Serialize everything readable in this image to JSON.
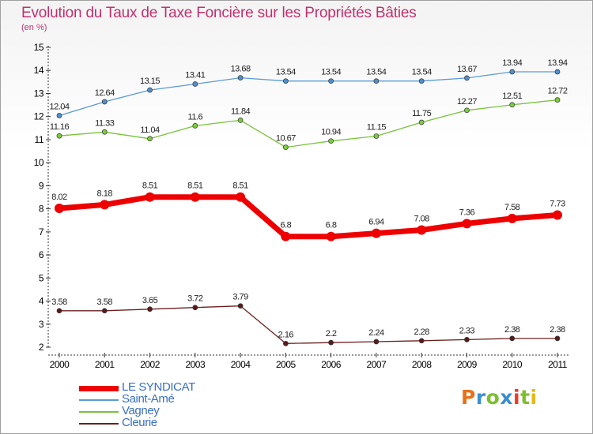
{
  "title": "Evolution du Taux de Taxe Foncière sur les Propriétés Bâties",
  "subtitle": "(en %)",
  "logo_text": "Proxiti",
  "logo_colors": [
    "#e8711c",
    "#3a8fd1",
    "#7cbf2f",
    "#3a8fd1",
    "#e83c2c",
    "#7cbf2f",
    "#e8b81c"
  ],
  "chart_data": {
    "type": "line",
    "title": "Evolution du Taux de Taxe Foncière sur les Propriétés Bâties",
    "ylabel": "(en %)",
    "xlabel": "",
    "ylim": [
      2,
      15
    ],
    "yticks": [
      "2",
      "3",
      "4",
      "5",
      "6",
      "7",
      "8",
      "9",
      "10",
      "11",
      "12",
      "13",
      "14",
      "15"
    ],
    "x": [
      "2000",
      "2001",
      "2002",
      "2003",
      "2004",
      "2005",
      "2006",
      "2007",
      "2008",
      "2009",
      "2010",
      "2011"
    ],
    "grid": false,
    "series": [
      {
        "name": "Saint-Amé",
        "color": "#5a9bd4",
        "marker": "#4f8fcc",
        "bold": false,
        "values": [
          12.04,
          12.64,
          13.15,
          13.41,
          13.68,
          13.54,
          13.54,
          13.54,
          13.54,
          13.67,
          13.94,
          13.94
        ],
        "labels": [
          "12.04",
          "12.64",
          "13.15",
          "13.41",
          "13.68",
          "13.54",
          "13.54",
          "13.54",
          "13.54",
          "13.67",
          "13.94",
          "13.94"
        ]
      },
      {
        "name": "Vagney",
        "color": "#79c33a",
        "marker": "#7ccc3c",
        "bold": false,
        "values": [
          11.16,
          11.33,
          11.04,
          11.6,
          11.84,
          10.67,
          10.94,
          11.15,
          11.75,
          12.27,
          12.51,
          12.72
        ],
        "labels": [
          "11.16",
          "11.33",
          "11.04",
          "11.6",
          "11.84",
          "10.67",
          "10.94",
          "11.15",
          "11.75",
          "12.27",
          "12.51",
          "12.72"
        ]
      },
      {
        "name": "LE SYNDICAT",
        "color": "#ee0000",
        "marker": "#ee0000",
        "bold": true,
        "values": [
          8.02,
          8.18,
          8.51,
          8.51,
          8.51,
          6.8,
          6.8,
          6.94,
          7.08,
          7.36,
          7.58,
          7.73
        ],
        "labels": [
          "8.02",
          "8.18",
          "8.51",
          "8.51",
          "8.51",
          "6.8",
          "6.8",
          "6.94",
          "7.08",
          "7.36",
          "7.58",
          "7.73"
        ]
      },
      {
        "name": "Cleurie",
        "color": "#6b2020",
        "marker": "#5a1a1a",
        "bold": false,
        "values": [
          3.58,
          3.58,
          3.65,
          3.72,
          3.79,
          2.16,
          2.2,
          2.24,
          2.28,
          2.33,
          2.38,
          2.38
        ],
        "labels": [
          "3.58",
          "3.58",
          "3.65",
          "3.72",
          "3.79",
          "2.16",
          "2.2",
          "2.24",
          "2.28",
          "2.33",
          "2.38",
          "2.38"
        ]
      }
    ],
    "legend": [
      {
        "name": "LE SYNDICAT",
        "color": "#ee0000",
        "text_color": "#3a6fc2",
        "bold": true
      },
      {
        "name": "Saint-Amé",
        "color": "#5a9bd4",
        "text_color": "#3a6fc2",
        "bold": false
      },
      {
        "name": "Vagney",
        "color": "#79c33a",
        "text_color": "#3a6fc2",
        "bold": false
      },
      {
        "name": "Cleurie",
        "color": "#6b2020",
        "text_color": "#3a6fc2",
        "bold": false
      }
    ],
    "legend_position": "bottom-left"
  }
}
